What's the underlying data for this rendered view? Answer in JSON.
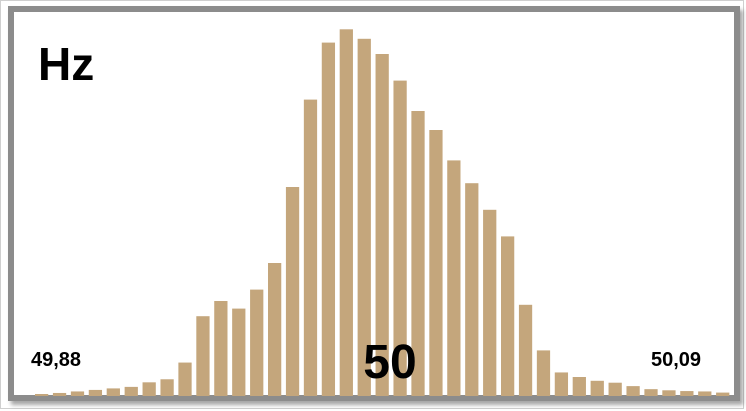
{
  "colors": {
    "bar": "#c4a67c",
    "frame": "#8c8c8c",
    "background": "#ffffff",
    "text": "#000000"
  },
  "chart_data": {
    "type": "bar",
    "title": "Hz",
    "xlabel": "",
    "ylabel": "",
    "tick_labels": {
      "left": "49,88",
      "center": "50",
      "right": "50,09"
    },
    "x_range": [
      49.88,
      50.09
    ],
    "ylim": [
      0,
      100
    ],
    "values": [
      0.4,
      0.8,
      1.2,
      1.6,
      2.0,
      2.4,
      3.6,
      4.4,
      8.8,
      21.0,
      25.0,
      23.0,
      28.0,
      35.0,
      55.0,
      78.0,
      93.0,
      96.5,
      94.0,
      90.0,
      83.0,
      75.0,
      70.0,
      62.0,
      56.0,
      49.0,
      42.0,
      24.0,
      12.0,
      6.2,
      5.0,
      4.0,
      3.5,
      2.6,
      1.8,
      1.5,
      1.3,
      1.2,
      0.9
    ],
    "grid": false,
    "legend": "none"
  }
}
